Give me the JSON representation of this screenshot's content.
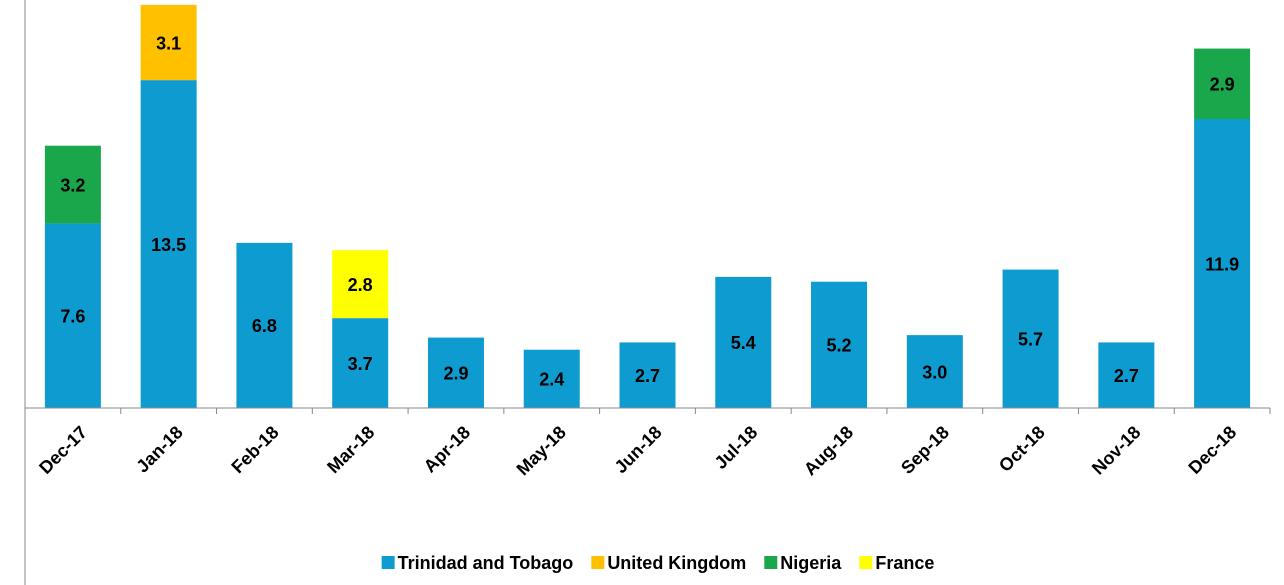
{
  "chart_data": {
    "type": "stacked_bar",
    "categories": [
      "Dec-17",
      "Jan-18",
      "Feb-18",
      "Mar-18",
      "Apr-18",
      "May-18",
      "Jun-18",
      "Jul-18",
      "Aug-18",
      "Sep-18",
      "Oct-18",
      "Nov-18",
      "Dec-18"
    ],
    "series": [
      {
        "name": "Trinidad and Tobago",
        "color": "#0e9bd0",
        "values": [
          7.6,
          13.5,
          6.8,
          3.7,
          2.9,
          2.4,
          2.7,
          5.4,
          5.2,
          3.0,
          5.7,
          2.7,
          11.9
        ],
        "value_labels": [
          "7.6",
          "13.5",
          "6.8",
          "3.7",
          "2.9",
          "2.4",
          "2.7",
          "5.4",
          "5.2",
          "3.0",
          "5.7",
          "2.7",
          "11.9"
        ]
      },
      {
        "name": "United Kingdom",
        "color": "#ffc000",
        "values": [
          null,
          3.1,
          null,
          null,
          null,
          null,
          null,
          null,
          null,
          null,
          null,
          null,
          null
        ]
      },
      {
        "name": "Nigeria",
        "color": "#1aa64a",
        "values": [
          3.2,
          null,
          null,
          null,
          null,
          null,
          null,
          null,
          null,
          null,
          null,
          null,
          2.9
        ]
      },
      {
        "name": "France",
        "color": "#ffff00",
        "values": [
          null,
          null,
          null,
          2.8,
          null,
          null,
          null,
          null,
          null,
          null,
          null,
          null,
          null
        ]
      }
    ],
    "ylim": [
      0,
      16.8
    ]
  }
}
